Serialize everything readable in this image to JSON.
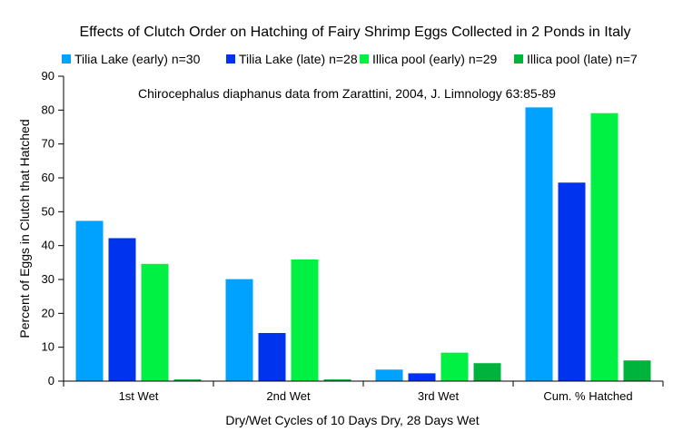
{
  "chart_data": {
    "type": "bar",
    "title": "Effects of Clutch Order on Hatching of Fairy Shrimp Eggs Collected in 2 Ponds in Italy",
    "annotation": "Chirocephalus diaphanus data from Zarattini, 2004, J. Limnology 63:85-89",
    "xlabel": "Dry/Wet Cycles of 10 Days Dry, 28 Days Wet",
    "ylabel": "Percent of Eggs in Clutch that Hatched",
    "ylim": [
      0,
      90
    ],
    "yticks": [
      0,
      10,
      20,
      30,
      40,
      50,
      60,
      70,
      80,
      90
    ],
    "grid": "none",
    "legend_position": "top",
    "categories": [
      "1st Wet",
      "2nd Wet",
      "3rd Wet",
      "Cum. % Hatched"
    ],
    "series": [
      {
        "name": "Tilia Lake (early) n=30",
        "color": "#00a2ff",
        "values": [
          47.3,
          30.1,
          3.4,
          80.8
        ]
      },
      {
        "name": "Tilia Lake (late) n=28",
        "color": "#0033ee",
        "values": [
          42.2,
          14.2,
          2.3,
          58.6
        ]
      },
      {
        "name": "Illica pool (early) n=29",
        "color": "#00f044",
        "values": [
          34.6,
          35.9,
          8.4,
          79.1
        ]
      },
      {
        "name": "Illica pool  (late) n=7",
        "color": "#00b33c",
        "values": [
          0.5,
          0.5,
          5.3,
          6.1
        ]
      }
    ]
  }
}
